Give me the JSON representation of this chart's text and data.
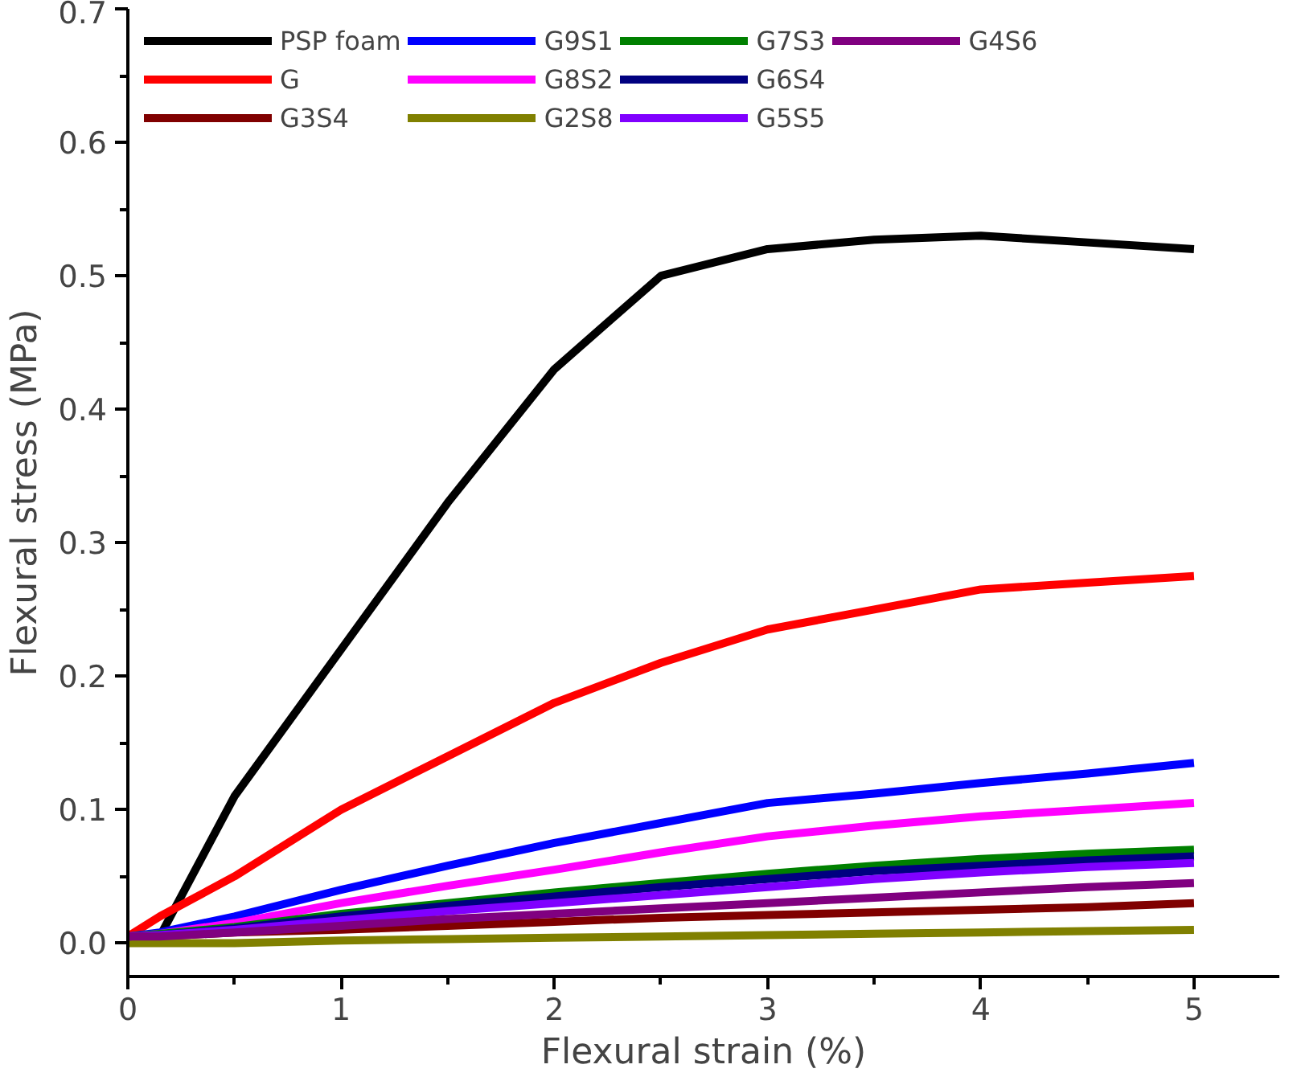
{
  "chart_data": {
    "type": "line",
    "xlabel": "Flexural strain (%)",
    "ylabel": "Flexural stress (MPa)",
    "x": [
      0,
      0.15,
      0.5,
      1,
      1.5,
      2,
      2.5,
      3,
      3.5,
      4,
      4.5,
      5
    ],
    "xlim": [
      0,
      5.4
    ],
    "ylim": [
      -0.025,
      0.7
    ],
    "xticks": [
      0,
      1,
      2,
      3,
      4,
      5
    ],
    "yticks": [
      {
        "value": 0,
        "label": "0.0"
      },
      0.1,
      0.2,
      0.3,
      0.4,
      0.5,
      0.6,
      0.7
    ],
    "grid": false,
    "legend": "top left",
    "line_style": "solid",
    "marker": "none",
    "series": [
      {
        "name": "PSP foam",
        "color": "#000000",
        "values": [
          0.005,
          0.005,
          0.11,
          0.22,
          0.33,
          0.43,
          0.5,
          0.52,
          0.527,
          0.53,
          0.525,
          0.52
        ]
      },
      {
        "name": "G",
        "color": "#ff0000",
        "values": [
          0.005,
          0.02,
          0.05,
          0.1,
          0.14,
          0.18,
          0.21,
          0.235,
          0.25,
          0.265,
          0.27,
          0.275
        ]
      },
      {
        "name": "G3S4",
        "color": "#800000",
        "values": [
          0.005,
          0.005,
          0.008,
          0.01,
          0.013,
          0.016,
          0.019,
          0.021,
          0.023,
          0.025,
          0.027,
          0.03
        ]
      },
      {
        "name": "G9S1",
        "color": "#0000ff",
        "values": [
          0.005,
          0.008,
          0.02,
          0.04,
          0.058,
          0.075,
          0.09,
          0.105,
          0.112,
          0.12,
          0.127,
          0.135
        ]
      },
      {
        "name": "G8S2",
        "color": "#ff00ff",
        "values": [
          0.005,
          0.007,
          0.015,
          0.03,
          0.043,
          0.055,
          0.068,
          0.08,
          0.088,
          0.095,
          0.1,
          0.105
        ]
      },
      {
        "name": "G2S8",
        "color": "#808000",
        "values": [
          0.0,
          0.0,
          0.0,
          0.002,
          0.003,
          0.004,
          0.005,
          0.006,
          0.007,
          0.008,
          0.009,
          0.01
        ]
      },
      {
        "name": "G7S3",
        "color": "#008000",
        "values": [
          0.005,
          0.007,
          0.012,
          0.022,
          0.03,
          0.038,
          0.045,
          0.052,
          0.058,
          0.063,
          0.067,
          0.07
        ]
      },
      {
        "name": "G6S4",
        "color": "#000080",
        "values": [
          0.005,
          0.006,
          0.011,
          0.02,
          0.028,
          0.035,
          0.042,
          0.048,
          0.054,
          0.058,
          0.062,
          0.065
        ]
      },
      {
        "name": "G5S5",
        "color": "#8000ff",
        "values": [
          0.005,
          0.006,
          0.01,
          0.017,
          0.024,
          0.03,
          0.036,
          0.042,
          0.048,
          0.053,
          0.057,
          0.06
        ]
      },
      {
        "name": "G4S6",
        "color": "#800080",
        "values": [
          0.005,
          0.005,
          0.008,
          0.013,
          0.018,
          0.022,
          0.026,
          0.03,
          0.034,
          0.038,
          0.042,
          0.045
        ]
      }
    ]
  }
}
